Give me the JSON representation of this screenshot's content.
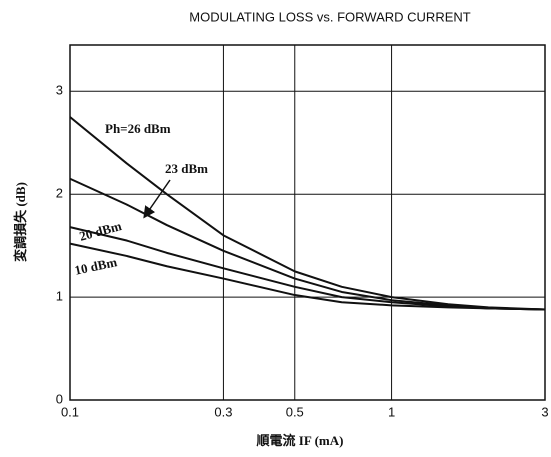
{
  "chart_data": {
    "type": "line",
    "title": "MODULATING LOSS vs. FORWARD CURRENT",
    "x_label": "順電流  IF (mA)",
    "y_label": "変調損失 (dB)",
    "x": [
      0.1,
      0.15,
      0.2,
      0.3,
      0.5,
      0.7,
      1,
      1.5,
      2,
      3
    ],
    "series": [
      {
        "name": "Ph=26 dBm",
        "color": "#111111",
        "values": [
          2.75,
          2.3,
          2.0,
          1.6,
          1.25,
          1.1,
          1.0,
          0.93,
          0.9,
          0.88
        ]
      },
      {
        "name": "23 dBm",
        "color": "#111111",
        "values": [
          2.15,
          1.9,
          1.7,
          1.45,
          1.18,
          1.05,
          0.97,
          0.92,
          0.89,
          0.88
        ]
      },
      {
        "name": "20 dBm",
        "color": "#111111",
        "values": [
          1.68,
          1.55,
          1.43,
          1.28,
          1.1,
          1.0,
          0.95,
          0.91,
          0.89,
          0.88
        ]
      },
      {
        "name": "10 dBm",
        "color": "#111111",
        "values": [
          1.52,
          1.4,
          1.3,
          1.18,
          1.02,
          0.95,
          0.92,
          0.9,
          0.89,
          0.88
        ]
      }
    ],
    "xscale": "log",
    "xlim": [
      0.1,
      3
    ],
    "xticks": [
      0.1,
      0.3,
      0.5,
      1,
      3
    ],
    "ylim": [
      0,
      3.45
    ],
    "yticks": [
      0,
      1,
      2,
      3
    ],
    "grid": true
  }
}
